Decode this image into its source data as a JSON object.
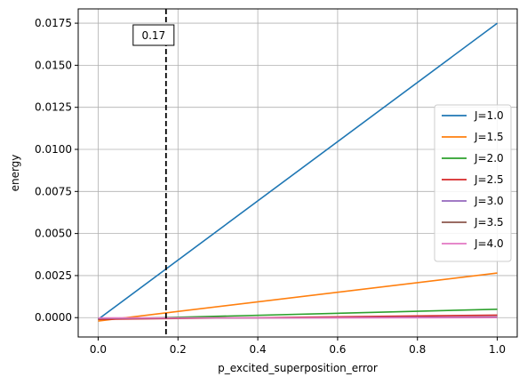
{
  "chart_data": {
    "type": "line",
    "xlabel": "p_excited_superposition_error",
    "ylabel": "energy",
    "xlim": [
      -0.05,
      1.05
    ],
    "ylim": [
      -0.00115,
      0.01835
    ],
    "x_ticks": [
      0.0,
      0.2,
      0.4,
      0.6,
      0.8,
      1.0
    ],
    "x_tick_labels": [
      "0.0",
      "0.2",
      "0.4",
      "0.6",
      "0.8",
      "1.0"
    ],
    "y_ticks": [
      0.0,
      0.0025,
      0.005,
      0.0075,
      0.01,
      0.0125,
      0.015,
      0.0175
    ],
    "y_tick_labels": [
      "0.0000",
      "0.0025",
      "0.0050",
      "0.0075",
      "0.0100",
      "0.0125",
      "0.0150",
      "0.0175"
    ],
    "grid": true,
    "legend_position": "center-right",
    "vline": {
      "x": 0.17,
      "style": "dashed",
      "color": "#000000",
      "label": "0.17"
    },
    "series": [
      {
        "name": "J=1.0",
        "color": "#1f77b4",
        "x": [
          0.0,
          1.0
        ],
        "values": [
          -0.0001,
          0.0175
        ]
      },
      {
        "name": "J=1.5",
        "color": "#ff7f0e",
        "x": [
          0.0,
          1.0
        ],
        "values": [
          -0.0002,
          0.00265
        ]
      },
      {
        "name": "J=2.0",
        "color": "#2ca02c",
        "x": [
          0.0,
          1.0
        ],
        "values": [
          -0.0001,
          0.0005
        ]
      },
      {
        "name": "J=2.5",
        "color": "#d62728",
        "x": [
          0.0,
          1.0
        ],
        "values": [
          -0.0001,
          0.00015
        ]
      },
      {
        "name": "J=3.0",
        "color": "#9467bd",
        "x": [
          0.0,
          1.0
        ],
        "values": [
          -5e-05,
          4e-05
        ]
      },
      {
        "name": "J=3.5",
        "color": "#8c564b",
        "x": [
          0.0,
          1.0
        ],
        "values": [
          -3e-05,
          1e-05
        ]
      },
      {
        "name": "J=4.0",
        "color": "#e377c2",
        "x": [
          0.0,
          1.0
        ],
        "values": [
          -2e-05,
          0.0
        ]
      }
    ]
  }
}
